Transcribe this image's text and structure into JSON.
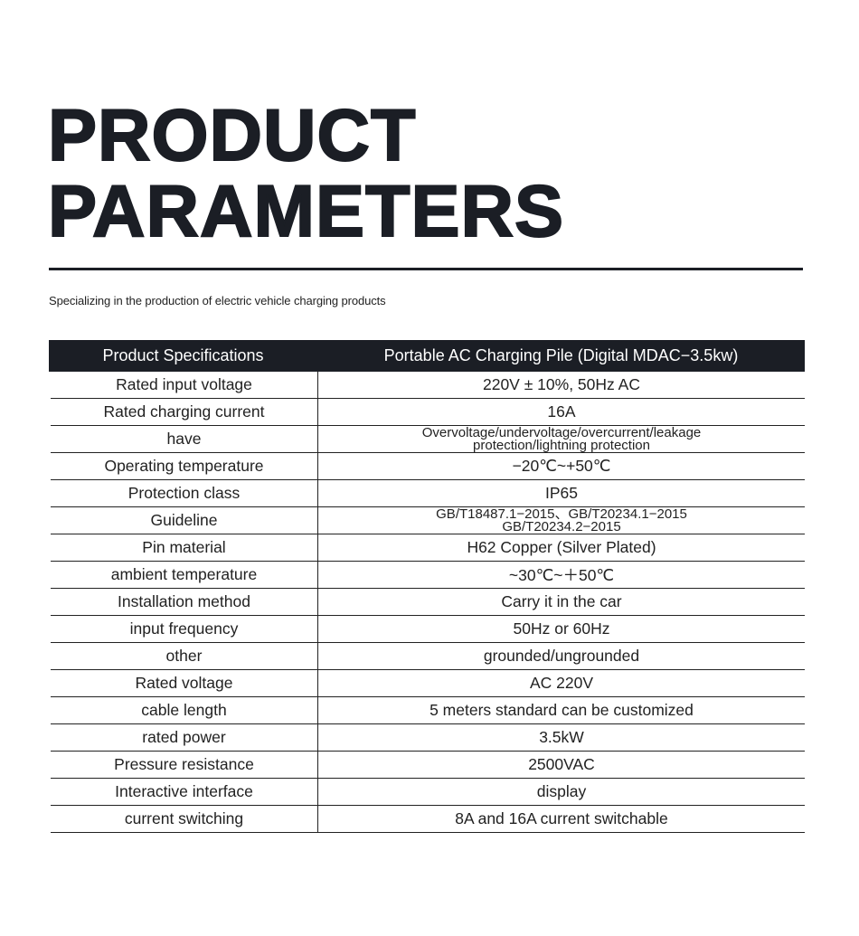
{
  "title_line1": "PRODUCT",
  "title_line2": "PARAMETERS",
  "subtitle": "Specializing in the production of electric vehicle charging products",
  "table": {
    "header": [
      "Product Specifications",
      "Portable AC Charging Pile (Digital MDAC−3.5kw)"
    ],
    "rows": [
      {
        "label": "Rated input voltage",
        "value": [
          "220V ± 10%, 50Hz AC"
        ]
      },
      {
        "label": "Rated charging current",
        "value": [
          "16A"
        ]
      },
      {
        "label": "have",
        "value": [
          "Overvoltage/undervoltage/overcurrent/leakage",
          "protection/lightning protection"
        ]
      },
      {
        "label": "Operating temperature",
        "value": [
          "−20℃~+50℃"
        ]
      },
      {
        "label": "Protection class",
        "value": [
          "IP65"
        ]
      },
      {
        "label": "Guideline",
        "value": [
          "GB/T18487.1−2015、GB/T20234.1−2015",
          "GB/T20234.2−2015"
        ]
      },
      {
        "label": "Pin material",
        "value": [
          "H62 Copper (Silver Plated)"
        ]
      },
      {
        "label": "ambient temperature",
        "value": [
          "~30℃~＋50℃"
        ]
      },
      {
        "label": "Installation method",
        "value": [
          "Carry it in the car"
        ]
      },
      {
        "label": "input frequency",
        "value": [
          "50Hz or 60Hz"
        ]
      },
      {
        "label": "other",
        "value": [
          "grounded/ungrounded"
        ]
      },
      {
        "label": "Rated voltage",
        "value": [
          "AC 220V"
        ]
      },
      {
        "label": "cable length",
        "value": [
          "5 meters standard can be customized"
        ]
      },
      {
        "label": "rated power",
        "value": [
          "3.5kW"
        ]
      },
      {
        "label": "Pressure resistance",
        "value": [
          "2500VAC"
        ]
      },
      {
        "label": "Interactive interface",
        "value": [
          "display"
        ]
      },
      {
        "label": "current switching",
        "value": [
          "8A and 16A current switchable"
        ]
      }
    ]
  }
}
